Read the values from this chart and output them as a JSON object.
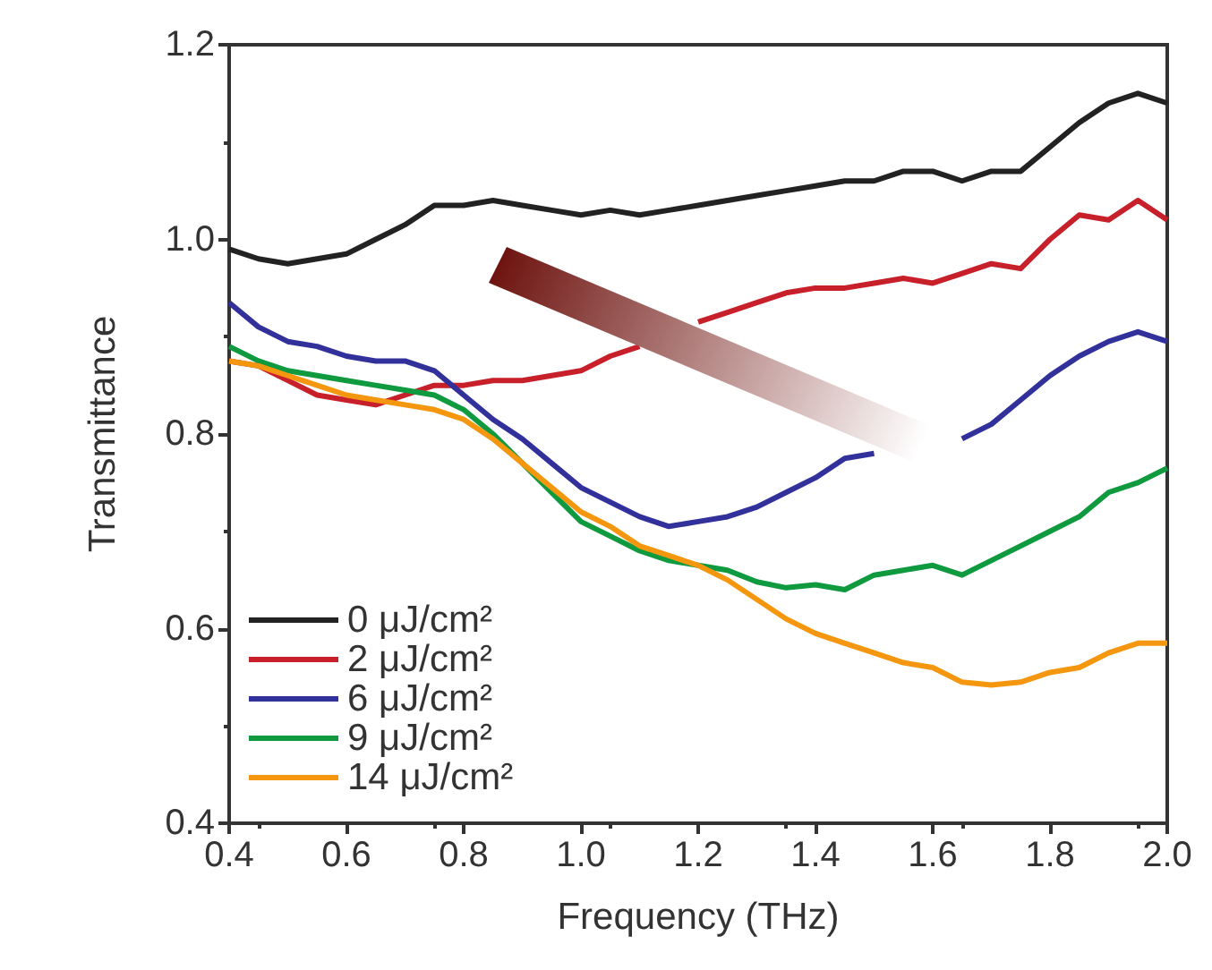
{
  "chart_data": {
    "type": "line",
    "xlabel": "Frequency (THz)",
    "ylabel": "Transmittance",
    "x": [
      0.4,
      0.45,
      0.5,
      0.55,
      0.6,
      0.65,
      0.7,
      0.75,
      0.8,
      0.85,
      0.9,
      0.95,
      1.0,
      1.05,
      1.1,
      1.15,
      1.2,
      1.25,
      1.3,
      1.35,
      1.4,
      1.45,
      1.5,
      1.55,
      1.6,
      1.65,
      1.7,
      1.75,
      1.8,
      1.85,
      1.9,
      1.95,
      2.0
    ],
    "series": [
      {
        "name": "0 μJ/cm²",
        "color": "#222222",
        "values": [
          0.99,
          0.98,
          0.975,
          0.98,
          0.985,
          1.0,
          1.015,
          1.035,
          1.035,
          1.04,
          1.035,
          1.03,
          1.025,
          1.03,
          1.025,
          1.03,
          1.035,
          1.04,
          1.045,
          1.05,
          1.055,
          1.06,
          1.06,
          1.07,
          1.07,
          1.06,
          1.07,
          1.07,
          1.095,
          1.12,
          1.14,
          1.15,
          1.14
        ]
      },
      {
        "name": "2 μJ/cm²",
        "color": "#c8202a",
        "values": [
          0.875,
          0.87,
          0.855,
          0.84,
          0.835,
          0.83,
          0.84,
          0.85,
          0.85,
          0.855,
          0.855,
          0.86,
          0.865,
          0.88,
          0.89,
          null,
          0.915,
          0.925,
          0.935,
          0.945,
          0.95,
          0.95,
          0.955,
          0.96,
          0.955,
          0.965,
          0.975,
          0.97,
          1.0,
          1.025,
          1.02,
          1.04,
          1.02
        ]
      },
      {
        "name": "6 μJ/cm²",
        "color": "#32309a",
        "values": [
          0.935,
          0.91,
          0.895,
          0.89,
          0.88,
          0.875,
          0.875,
          0.865,
          0.84,
          0.815,
          0.795,
          0.77,
          0.745,
          0.73,
          0.715,
          0.705,
          0.71,
          0.715,
          0.725,
          0.74,
          0.755,
          0.775,
          0.78,
          null,
          null,
          0.795,
          0.81,
          0.835,
          0.86,
          0.88,
          0.895,
          0.905,
          0.895
        ]
      },
      {
        "name": "9 μJ/cm²",
        "color": "#0f9a40",
        "values": [
          0.89,
          0.875,
          0.865,
          0.86,
          0.855,
          0.85,
          0.845,
          0.84,
          0.825,
          0.8,
          0.77,
          0.74,
          0.71,
          0.695,
          0.68,
          0.67,
          0.665,
          0.66,
          0.648,
          0.642,
          0.645,
          0.64,
          0.655,
          0.66,
          0.665,
          0.655,
          0.67,
          0.685,
          0.7,
          0.715,
          0.74,
          0.75,
          0.765
        ]
      },
      {
        "name": "14 μJ/cm²",
        "color": "#f5960f",
        "values": [
          0.875,
          0.87,
          0.86,
          0.85,
          0.84,
          0.835,
          0.83,
          0.825,
          0.815,
          0.795,
          0.77,
          0.745,
          0.72,
          0.705,
          0.685,
          0.675,
          0.665,
          0.65,
          0.63,
          0.61,
          0.595,
          0.585,
          0.575,
          0.565,
          0.56,
          0.545,
          0.542,
          0.545,
          0.555,
          0.56,
          0.575,
          0.585,
          0.585
        ]
      }
    ],
    "xlim": [
      0.4,
      2.0
    ],
    "xticks": [
      0.4,
      0.6,
      0.8,
      {
        "value": 1,
        "label": "1.0"
      },
      1.2,
      1.4,
      1.6,
      1.8,
      {
        "value": 2,
        "label": "2.0"
      }
    ],
    "ylim": [
      0.4,
      1.2
    ],
    "yticks": [
      0.4,
      0.6,
      0.8,
      {
        "value": 1,
        "label": "1.0"
      },
      1.2
    ],
    "grid": false,
    "legend": "bottom left",
    "marker": "none",
    "line_style": "solid"
  }
}
